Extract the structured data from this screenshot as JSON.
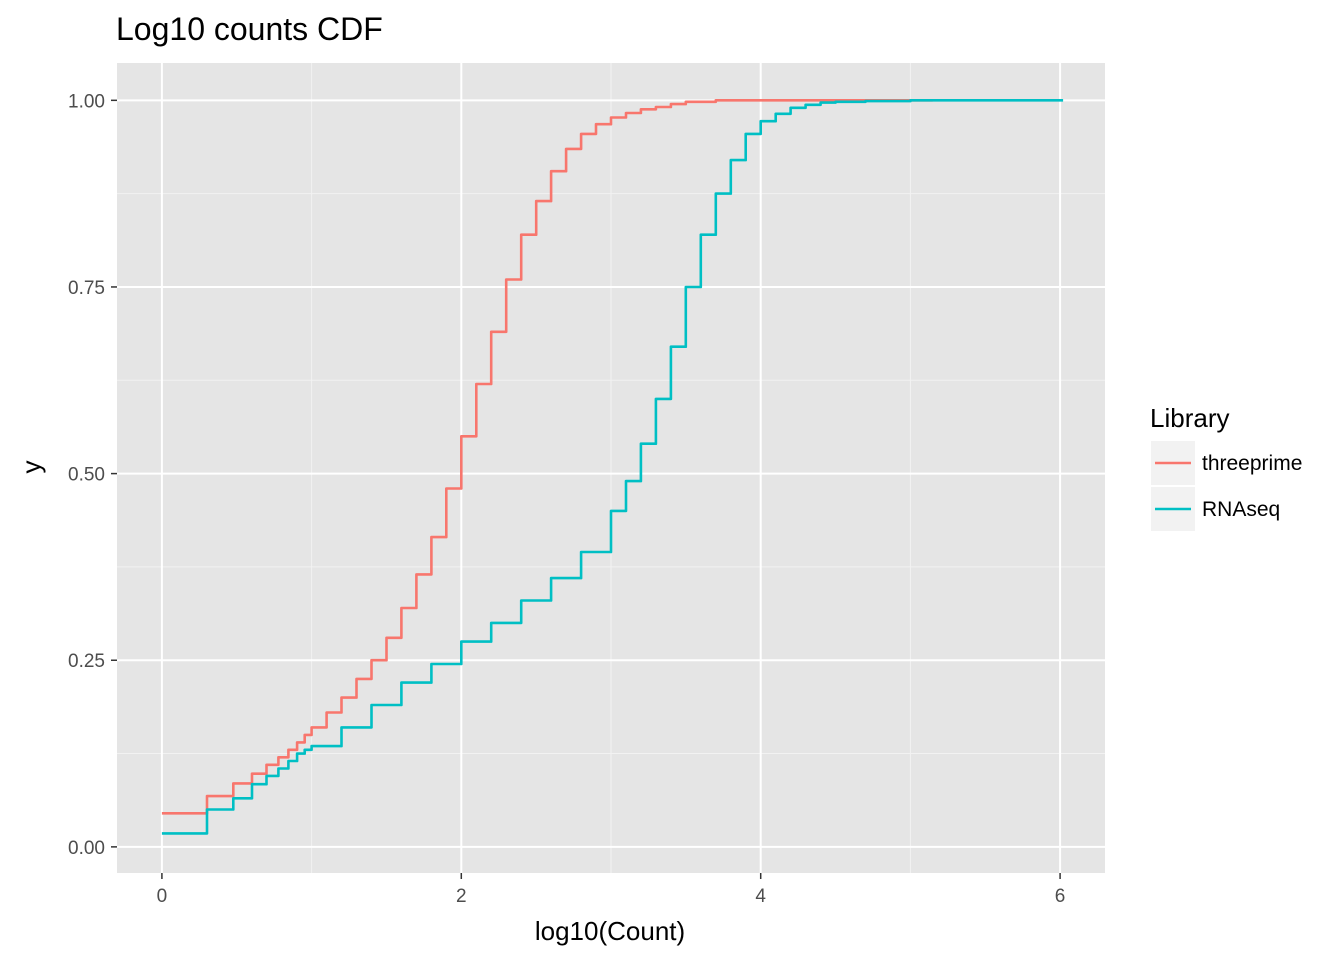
{
  "chart_data": {
    "type": "line",
    "title": "Log10 counts CDF",
    "xlabel": "log10(Count)",
    "ylabel": "y",
    "xlim": [
      -0.3,
      6.3
    ],
    "ylim": [
      -0.035,
      1.05
    ],
    "x_ticks": [
      0,
      2,
      4,
      6
    ],
    "x_tick_labels": [
      "0",
      "2",
      "4",
      "6"
    ],
    "y_ticks": [
      0,
      0.25,
      0.5,
      0.75,
      1.0
    ],
    "y_tick_labels": [
      "0.00",
      "0.25",
      "0.50",
      "0.75",
      "1.00"
    ],
    "grid": true,
    "background": "#e5e5e5",
    "legend": {
      "title": "Library",
      "position": "right"
    },
    "series": [
      {
        "name": "threeprime",
        "color": "#f8766d",
        "step": true,
        "x": [
          0,
          0.301,
          0.477,
          0.602,
          0.699,
          0.778,
          0.845,
          0.903,
          0.954,
          1.0,
          1.1,
          1.2,
          1.3,
          1.4,
          1.5,
          1.6,
          1.7,
          1.8,
          1.9,
          2.0,
          2.1,
          2.2,
          2.3,
          2.4,
          2.5,
          2.6,
          2.7,
          2.8,
          2.9,
          3.0,
          3.1,
          3.2,
          3.3,
          3.4,
          3.5,
          3.7,
          4.0,
          4.5,
          5.15
        ],
        "y": [
          0.045,
          0.068,
          0.085,
          0.098,
          0.11,
          0.12,
          0.13,
          0.14,
          0.15,
          0.16,
          0.18,
          0.2,
          0.225,
          0.25,
          0.28,
          0.32,
          0.365,
          0.415,
          0.48,
          0.55,
          0.62,
          0.69,
          0.76,
          0.82,
          0.865,
          0.905,
          0.935,
          0.955,
          0.968,
          0.977,
          0.983,
          0.988,
          0.991,
          0.995,
          0.998,
          1.0,
          1.0,
          1.0,
          1.0
        ]
      },
      {
        "name": "RNAseq",
        "color": "#00bfc4",
        "step": true,
        "x": [
          0,
          0.301,
          0.477,
          0.602,
          0.699,
          0.778,
          0.845,
          0.903,
          0.954,
          1.0,
          1.2,
          1.4,
          1.6,
          1.8,
          2.0,
          2.2,
          2.4,
          2.6,
          2.8,
          3.0,
          3.1,
          3.2,
          3.3,
          3.4,
          3.5,
          3.6,
          3.7,
          3.8,
          3.9,
          4.0,
          4.1,
          4.2,
          4.3,
          4.4,
          4.5,
          4.7,
          5.0,
          5.5,
          6.02
        ],
        "y": [
          0.018,
          0.05,
          0.065,
          0.084,
          0.095,
          0.105,
          0.115,
          0.125,
          0.13,
          0.135,
          0.16,
          0.19,
          0.22,
          0.245,
          0.275,
          0.3,
          0.33,
          0.36,
          0.395,
          0.45,
          0.49,
          0.54,
          0.6,
          0.67,
          0.75,
          0.82,
          0.875,
          0.92,
          0.955,
          0.972,
          0.982,
          0.99,
          0.994,
          0.997,
          0.998,
          0.999,
          1.0,
          1.0,
          1.0
        ]
      }
    ]
  }
}
